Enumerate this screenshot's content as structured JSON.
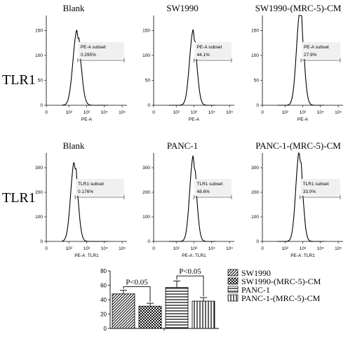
{
  "row_labels": [
    "TLR1",
    "TLR1"
  ],
  "histograms": [
    {
      "title": "Blank",
      "xlabel": "PE-A",
      "gate_label": "PE-A subset",
      "gate_value": "0.295%",
      "ymax": 150,
      "yticks": [
        0,
        50,
        100,
        150
      ],
      "peak_log": 2.45,
      "peak_y": 148,
      "width_log": 0.22
    },
    {
      "title": "SW1990",
      "xlabel": "PE-A",
      "gate_label": "PE-A subset",
      "gate_value": "44.1%",
      "ymax": 150,
      "yticks": [
        0,
        50,
        100,
        150
      ],
      "peak_log": 2.95,
      "peak_y": 148,
      "width_log": 0.2
    },
    {
      "title": "SW1990-(MRC-5)-CM",
      "xlabel": "PE-A",
      "gate_label": "PE-A subset",
      "gate_value": "27.9%",
      "ymax": 150,
      "yticks": [
        0,
        50,
        100,
        150
      ],
      "peak_log": 2.85,
      "peak_y": 188,
      "width_log": 0.2
    },
    {
      "title": "Blank",
      "xlabel": "PE-A: TLR1",
      "gate_label": "TLR1 subset",
      "gate_value": "0.176%",
      "ymax": 300,
      "yticks": [
        0,
        100,
        200,
        300
      ],
      "peak_log": 2.3,
      "peak_y": 320,
      "width_log": 0.2
    },
    {
      "title": "PANC-1",
      "xlabel": "PE-A: TLR1",
      "gate_label": "TLR1 subset",
      "gate_value": "48.6%",
      "ymax": 300,
      "yticks": [
        0,
        100,
        200,
        300
      ],
      "peak_log": 2.95,
      "peak_y": 340,
      "width_log": 0.19
    },
    {
      "title": "PANC-1-(MRC-5)-CM",
      "xlabel": "PE-A: TLR1",
      "gate_label": "TLR1 subset",
      "gate_value": "33.0%",
      "ymax": 300,
      "yticks": [
        0,
        100,
        200,
        300
      ],
      "peak_log": 2.8,
      "peak_y": 360,
      "width_log": 0.19
    }
  ],
  "xticks": [
    "0",
    "10²",
    "10³",
    "10⁴",
    "10⁵"
  ],
  "chart_data": {
    "type": "bar",
    "categories": [
      "SW1990",
      "SW1990-(MRC-5)-CM",
      "PANC-1",
      "PANC-1-(MRC-5)-CM"
    ],
    "values": [
      48,
      31,
      57,
      38
    ],
    "errors": [
      5,
      4,
      9,
      5
    ],
    "ylim": [
      0,
      80
    ],
    "yticks": [
      0,
      20,
      40,
      60,
      80
    ],
    "annotations": [
      "P<0.05",
      "P<0.05"
    ],
    "legend_position": "right",
    "patterns": [
      "diagonal",
      "checker",
      "horizontal",
      "vertical"
    ],
    "grid": false
  }
}
